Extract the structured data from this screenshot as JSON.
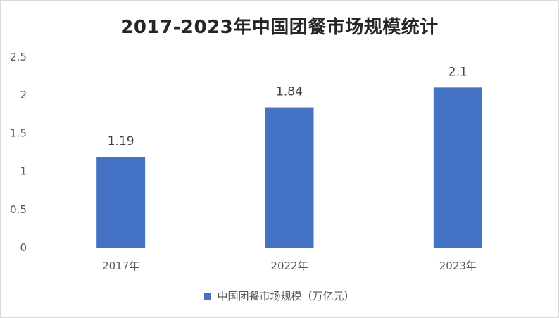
{
  "chart_data": {
    "type": "bar",
    "title": "2017-2023年中国团餐市场规模统计",
    "xlabel": "",
    "ylabel": "",
    "categories": [
      "2017年",
      "2022年",
      "2023年"
    ],
    "series": [
      {
        "name": "中国团餐市场规模（万亿元）",
        "values": [
          1.19,
          1.84,
          2.1
        ],
        "value_labels": [
          "1.19",
          "1.84",
          "2.1"
        ]
      }
    ],
    "ylim": [
      0,
      2.5
    ],
    "y_ticks": [
      "0",
      "0.5",
      "1",
      "1.5",
      "2",
      "2.5"
    ],
    "grid": false,
    "legend_position": "bottom"
  },
  "colors": {
    "bar": "#4472c4",
    "axis": "#d9d9d9"
  }
}
